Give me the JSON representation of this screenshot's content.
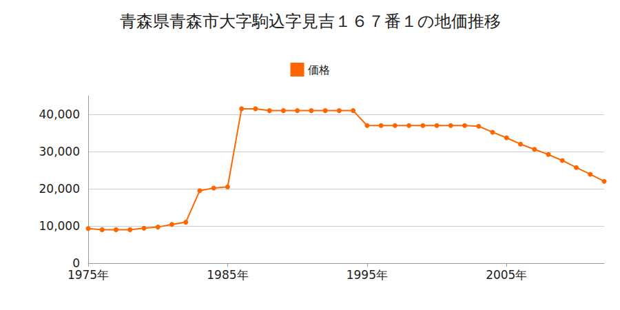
{
  "chart_data": {
    "type": "line",
    "title": "青森県青森市大字駒込字見吉１６７番１の地価推移",
    "series": [
      {
        "name": "価格",
        "color": "#ff6600",
        "marker": "circle",
        "x": [
          1975,
          1976,
          1977,
          1978,
          1979,
          1980,
          1981,
          1982,
          1983,
          1984,
          1985,
          1986,
          1987,
          1988,
          1989,
          1990,
          1991,
          1992,
          1993,
          1994,
          1995,
          1996,
          1997,
          1998,
          1999,
          2000,
          2001,
          2002,
          2003,
          2004,
          2005,
          2006,
          2007,
          2008,
          2009,
          2010,
          2011,
          2012
        ],
        "values": [
          9300,
          9000,
          9000,
          9000,
          9400,
          9700,
          10400,
          11000,
          19500,
          20200,
          20500,
          41500,
          41500,
          41000,
          41000,
          41000,
          41000,
          41000,
          41000,
          41000,
          37000,
          37000,
          37000,
          37000,
          37000,
          37000,
          37000,
          37000,
          36800,
          35200,
          33700,
          32000,
          30600,
          29200,
          27600,
          25700,
          23900,
          22000
        ]
      }
    ],
    "xlim": [
      1975,
      2012
    ],
    "xticks": [
      {
        "value": 1975,
        "label": "1975年"
      },
      {
        "value": 1985,
        "label": "1985年"
      },
      {
        "value": 1995,
        "label": "1995年"
      },
      {
        "value": 2005,
        "label": "2005年"
      }
    ],
    "ylim": [
      0,
      45000
    ],
    "yticks": [
      0,
      {
        "value": 10000,
        "label": "10,000"
      },
      {
        "value": 20000,
        "label": "20,000"
      },
      {
        "value": 30000,
        "label": "30,000"
      },
      {
        "value": 40000,
        "label": "40,000"
      }
    ],
    "grid": true,
    "legend": "top"
  }
}
